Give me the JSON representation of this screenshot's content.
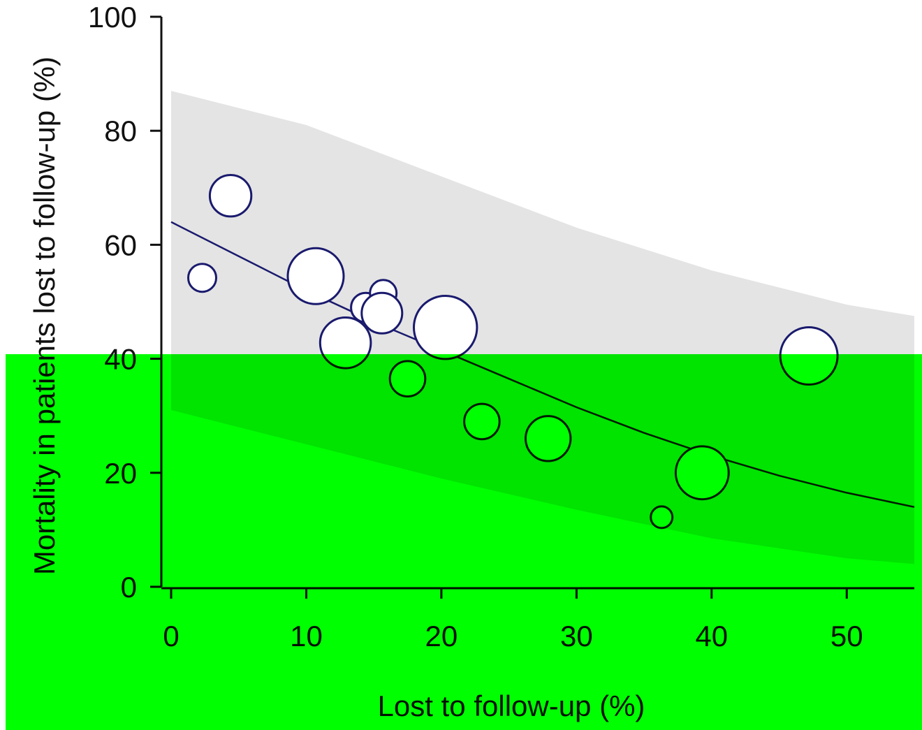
{
  "chart_data": {
    "type": "scatter",
    "title": "",
    "xlabel": "Lost to follow-up (%)",
    "ylabel": "Mortality in patients lost to follow-up (%)",
    "xlim": [
      0,
      55
    ],
    "ylim": [
      0,
      100
    ],
    "xticks": [
      "0",
      "10",
      "20",
      "30",
      "40",
      "50"
    ],
    "yticks": [
      "0",
      "20",
      "40",
      "60",
      "80",
      "100"
    ],
    "grid": false,
    "colors": {
      "marker": "#1a1a6e",
      "fit_line": "#1a1a6e",
      "band": "#e4e4e4",
      "overlay": "#00ff00"
    },
    "points": [
      {
        "x": 2.3,
        "y": 54.2,
        "weight": 1.0
      },
      {
        "x": 4.4,
        "y": 68.6,
        "weight": 2.2
      },
      {
        "x": 10.7,
        "y": 54.5,
        "weight": 4.0
      },
      {
        "x": 12.9,
        "y": 42.8,
        "weight": 3.3
      },
      {
        "x": 14.4,
        "y": 49.0,
        "weight": 1.1
      },
      {
        "x": 15.7,
        "y": 51.5,
        "weight": 0.9
      },
      {
        "x": 15.6,
        "y": 48.0,
        "weight": 2.1
      },
      {
        "x": 20.3,
        "y": 45.5,
        "weight": 5.1
      },
      {
        "x": 17.5,
        "y": 36.5,
        "weight": 1.6
      },
      {
        "x": 23.0,
        "y": 29.0,
        "weight": 1.6
      },
      {
        "x": 27.9,
        "y": 26.0,
        "weight": 2.6
      },
      {
        "x": 36.3,
        "y": 12.2,
        "weight": 0.6
      },
      {
        "x": 39.3,
        "y": 20.0,
        "weight": 3.6
      },
      {
        "x": 47.2,
        "y": 40.5,
        "weight": 4.2
      }
    ],
    "fit_line": [
      {
        "x": 0,
        "y": 64.0
      },
      {
        "x": 5,
        "y": 58.0
      },
      {
        "x": 10,
        "y": 52.0
      },
      {
        "x": 15,
        "y": 46.5
      },
      {
        "x": 20,
        "y": 41.5
      },
      {
        "x": 25,
        "y": 36.5
      },
      {
        "x": 30,
        "y": 31.5
      },
      {
        "x": 35,
        "y": 27.0
      },
      {
        "x": 40,
        "y": 23.0
      },
      {
        "x": 45,
        "y": 19.5
      },
      {
        "x": 50,
        "y": 16.5
      },
      {
        "x": 55,
        "y": 14.0
      }
    ],
    "confidence_band": {
      "upper": [
        {
          "x": 0,
          "y": 87.0
        },
        {
          "x": 10,
          "y": 81.0
        },
        {
          "x": 20,
          "y": 72.0
        },
        {
          "x": 30,
          "y": 63.0
        },
        {
          "x": 40,
          "y": 55.5
        },
        {
          "x": 50,
          "y": 49.5
        },
        {
          "x": 55,
          "y": 47.5
        }
      ],
      "lower": [
        {
          "x": 0,
          "y": 31.0
        },
        {
          "x": 10,
          "y": 25.0
        },
        {
          "x": 20,
          "y": 19.0
        },
        {
          "x": 30,
          "y": 13.5
        },
        {
          "x": 40,
          "y": 8.5
        },
        {
          "x": 50,
          "y": 5.0
        },
        {
          "x": 55,
          "y": 4.0
        }
      ]
    }
  }
}
